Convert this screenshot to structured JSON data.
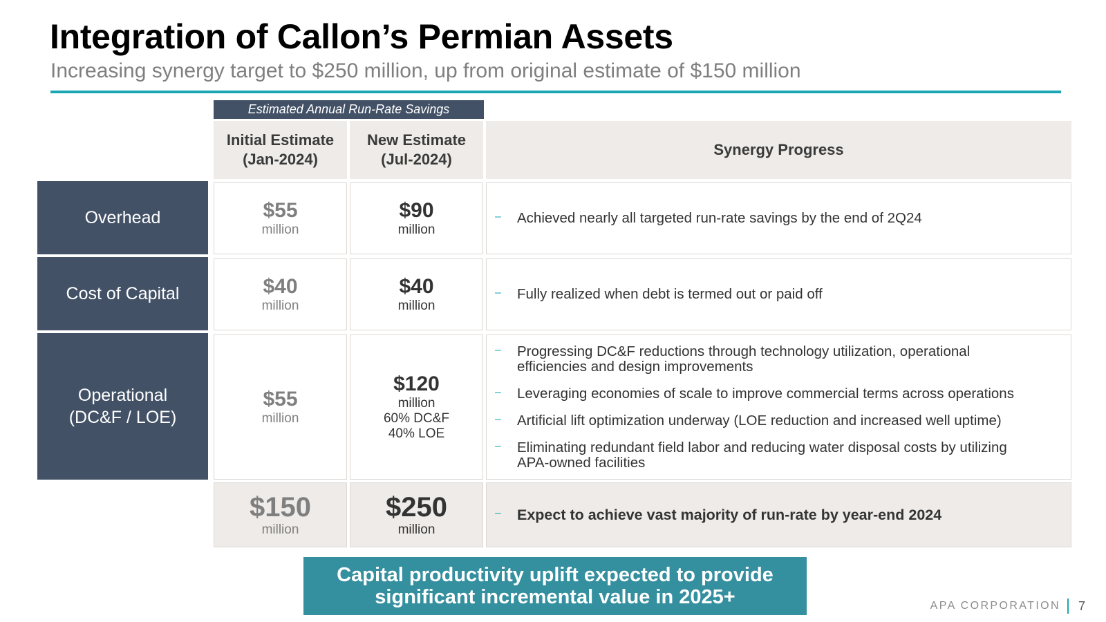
{
  "header": {
    "title": "Integration of Callon’s Permian Assets",
    "subtitle": "Increasing synergy target to $250 million, up from original estimate of $150 million"
  },
  "table": {
    "group_label": "Estimated Annual Run-Rate Savings",
    "columns": {
      "initial": [
        "Initial Estimate",
        "(Jan-2024)"
      ],
      "new": [
        "New Estimate",
        "(Jul-2024)"
      ],
      "progress": "Synergy Progress"
    },
    "rows": [
      {
        "label": [
          "Overhead"
        ],
        "initial": {
          "value": "$55",
          "unit": "million"
        },
        "new": {
          "value": "$90",
          "unit": "million",
          "notes": []
        },
        "progress": [
          [
            "Achieved nearly all targeted run-rate savings by the end of 2Q24"
          ]
        ]
      },
      {
        "label": [
          "Cost of Capital"
        ],
        "initial": {
          "value": "$40",
          "unit": "million"
        },
        "new": {
          "value": "$40",
          "unit": "million",
          "notes": []
        },
        "progress": [
          [
            "Fully realized when debt is termed out or paid off"
          ]
        ]
      },
      {
        "label": [
          "Operational",
          "(DC&F / LOE)"
        ],
        "initial": {
          "value": "$55",
          "unit": "million"
        },
        "new": {
          "value": "$120",
          "unit": "million",
          "notes": [
            "60% DC&F",
            "40% LOE"
          ]
        },
        "progress": [
          [
            "Progressing DC&F reductions through technology utilization, operational",
            "efficiencies and design improvements"
          ],
          [
            "Leveraging economies of scale to improve commercial terms across operations"
          ],
          [
            "Artificial lift optimization underway (LOE reduction and increased well uptime)"
          ],
          [
            "Eliminating redundant field labor and reducing water disposal costs by utilizing",
            "APA-owned facilities"
          ]
        ]
      }
    ],
    "totals": {
      "initial": {
        "value": "$150",
        "unit": "million"
      },
      "new": {
        "value": "$250",
        "unit": "million"
      },
      "progress": "Expect to achieve vast majority of run-rate by year-end 2024"
    }
  },
  "callout": [
    "Capital productivity uplift expected to provide",
    "significant incremental value in 2025+"
  ],
  "footer": {
    "company": "APA CORPORATION",
    "page": "7"
  },
  "colors": {
    "accent_teal": "#1aa7b3",
    "navy": "#425166",
    "callout_teal": "#348f9f",
    "header_gray": "#eeebe8"
  }
}
